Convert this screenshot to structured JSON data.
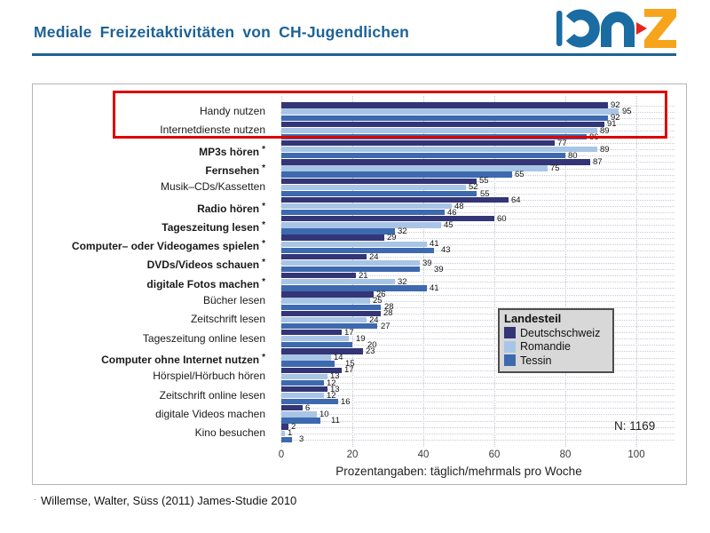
{
  "slide": {
    "title": "Mediale Freizeitaktivitäten von CH-Jugendlichen",
    "logo_name": "phz-logo",
    "footer_bullet": "·",
    "citation": "Willemse, Walter, Süss (2011) James-Studie 2010"
  },
  "colors": {
    "title_blue": "#1d6296",
    "highlight_red": "#dd0400",
    "legend_bg": "#d8d8d8",
    "logo_blue": "#1a6ca3",
    "logo_orange": "#f6a41c",
    "logo_red": "#e2261d"
  },
  "chart_data": {
    "type": "bar",
    "orientation": "horizontal",
    "xlabel": "Prozentangaben: täglich/mehrmals pro Woche",
    "xlim": [
      0,
      100
    ],
    "xticks": [
      0,
      20,
      40,
      60,
      80,
      100
    ],
    "grid": "dotted",
    "legend_title": "Landesteil",
    "legend_position": "right-middle",
    "n_label": "N: 1169",
    "categories": [
      {
        "label": "Handy nutzen",
        "bold": false,
        "asterisk": false,
        "highlighted": true
      },
      {
        "label": "Internetdienste nutzen",
        "bold": false,
        "asterisk": false,
        "highlighted": true
      },
      {
        "label": "MP3s hören",
        "bold": true,
        "asterisk": true,
        "highlighted": false
      },
      {
        "label": "Fernsehen",
        "bold": true,
        "asterisk": true,
        "highlighted": false
      },
      {
        "label": "Musik–CDs/Kassetten",
        "bold": false,
        "asterisk": false,
        "highlighted": false
      },
      {
        "label": "Radio hören",
        "bold": true,
        "asterisk": true,
        "highlighted": false
      },
      {
        "label": "Tageszeitung lesen",
        "bold": true,
        "asterisk": true,
        "highlighted": false
      },
      {
        "label": "Computer– oder Videogames spielen",
        "bold": true,
        "asterisk": true,
        "highlighted": false
      },
      {
        "label": "DVDs/Videos schauen",
        "bold": true,
        "asterisk": true,
        "highlighted": false
      },
      {
        "label": "digitale Fotos machen",
        "bold": true,
        "asterisk": true,
        "highlighted": false
      },
      {
        "label": "Bücher lesen",
        "bold": false,
        "asterisk": false,
        "highlighted": false
      },
      {
        "label": "Zeitschrift lesen",
        "bold": false,
        "asterisk": false,
        "highlighted": false
      },
      {
        "label": "Tageszeitung online lesen",
        "bold": false,
        "asterisk": false,
        "highlighted": false
      },
      {
        "label": "Computer ohne Internet nutzen",
        "bold": true,
        "asterisk": true,
        "highlighted": false
      },
      {
        "label": "Hörspiel/Hörbuch hören",
        "bold": false,
        "asterisk": false,
        "highlighted": false
      },
      {
        "label": "Zeitschrift online lesen",
        "bold": false,
        "asterisk": false,
        "highlighted": false
      },
      {
        "label": "digitale Videos machen",
        "bold": false,
        "asterisk": false,
        "highlighted": false
      },
      {
        "label": "Kino besuchen",
        "bold": false,
        "asterisk": false,
        "highlighted": false
      }
    ],
    "series": [
      {
        "name": "Deutschschweiz",
        "color": "#333577",
        "values": [
          92,
          91,
          77,
          87,
          55,
          64,
          60,
          29,
          24,
          21,
          26,
          28,
          17,
          23,
          17,
          13,
          6,
          2
        ]
      },
      {
        "name": "Romandie",
        "color": "#a9c5e5",
        "values": [
          95,
          89,
          89,
          75,
          52,
          48,
          45,
          41,
          39,
          32,
          25,
          24,
          19,
          14,
          13,
          12,
          10,
          1
        ]
      },
      {
        "name": "Tessin",
        "color": "#3d69af",
        "values": [
          92,
          86,
          80,
          65,
          55,
          46,
          32,
          43,
          39,
          41,
          28,
          27,
          20,
          15,
          12,
          16,
          11,
          3
        ]
      }
    ]
  }
}
